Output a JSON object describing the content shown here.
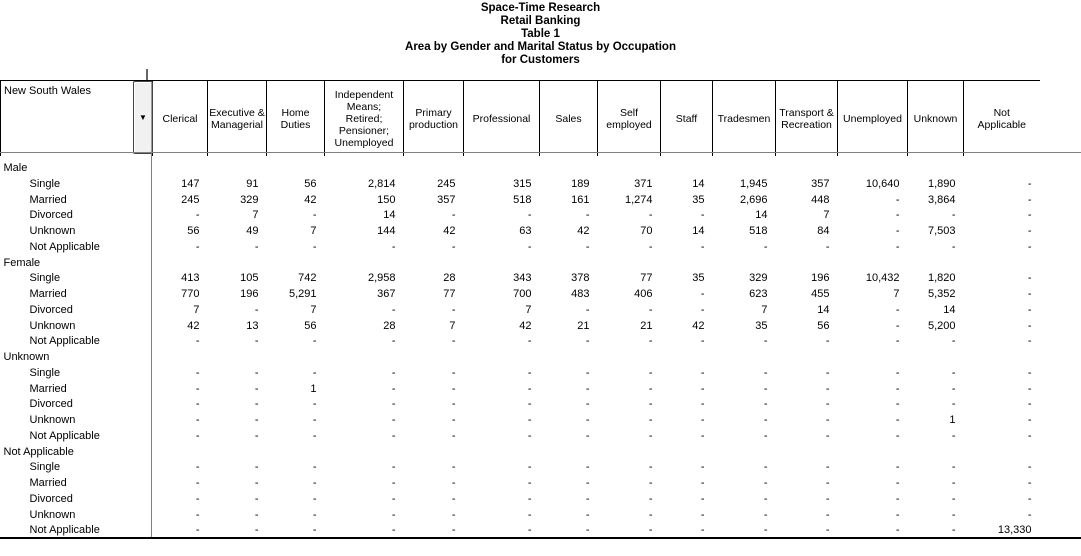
{
  "titles": [
    "Space-Time Research",
    "Retail Banking",
    "Table 1",
    "Area by Gender and Marital Status by Occupation",
    "for Customers"
  ],
  "table": {
    "area_label": "New South Wales",
    "dropdown_icon": "▼",
    "columns": [
      "Clerical",
      "Executive &\nManagerial",
      "Home\nDuties",
      "Independent\nMeans;\nRetired;\nPensioner;\nUnemployed",
      "Primary\nproduction",
      "Professional",
      "Sales",
      "Self\nemployed",
      "Staff",
      "Tradesmen",
      "Transport &\nRecreation",
      "Unemployed",
      "Unknown",
      "Not\nApplicable"
    ],
    "groups": [
      {
        "label": "Male",
        "rows": [
          {
            "label": "Single",
            "values": [
              "147",
              "91",
              "56",
              "2,814",
              "245",
              "315",
              "189",
              "371",
              "14",
              "1,945",
              "357",
              "10,640",
              "1,890",
              "-"
            ]
          },
          {
            "label": "Married",
            "values": [
              "245",
              "329",
              "42",
              "150",
              "357",
              "518",
              "161",
              "1,274",
              "35",
              "2,696",
              "448",
              "-",
              "3,864",
              "-"
            ]
          },
          {
            "label": "Divorced",
            "values": [
              "-",
              "7",
              "-",
              "14",
              "-",
              "-",
              "-",
              "-",
              "-",
              "14",
              "7",
              "-",
              "-",
              "-"
            ]
          },
          {
            "label": "Unknown",
            "values": [
              "56",
              "49",
              "7",
              "144",
              "42",
              "63",
              "42",
              "70",
              "14",
              "518",
              "84",
              "-",
              "7,503",
              "-"
            ]
          },
          {
            "label": "Not Applicable",
            "values": [
              "-",
              "-",
              "-",
              "-",
              "-",
              "-",
              "-",
              "-",
              "-",
              "-",
              "-",
              "-",
              "-",
              "-"
            ]
          }
        ]
      },
      {
        "label": "Female",
        "rows": [
          {
            "label": "Single",
            "values": [
              "413",
              "105",
              "742",
              "2,958",
              "28",
              "343",
              "378",
              "77",
              "35",
              "329",
              "196",
              "10,432",
              "1,820",
              "-"
            ]
          },
          {
            "label": "Married",
            "values": [
              "770",
              "196",
              "5,291",
              "367",
              "77",
              "700",
              "483",
              "406",
              "-",
              "623",
              "455",
              "7",
              "5,352",
              "-"
            ]
          },
          {
            "label": "Divorced",
            "values": [
              "7",
              "-",
              "7",
              "-",
              "-",
              "7",
              "-",
              "-",
              "-",
              "7",
              "14",
              "-",
              "14",
              "-"
            ]
          },
          {
            "label": "Unknown",
            "values": [
              "42",
              "13",
              "56",
              "28",
              "7",
              "42",
              "21",
              "21",
              "42",
              "35",
              "56",
              "-",
              "5,200",
              "-"
            ]
          },
          {
            "label": "Not Applicable",
            "values": [
              "-",
              "-",
              "-",
              "-",
              "-",
              "-",
              "-",
              "-",
              "-",
              "-",
              "-",
              "-",
              "-",
              "-"
            ]
          }
        ]
      },
      {
        "label": "Unknown",
        "rows": [
          {
            "label": "Single",
            "values": [
              "-",
              "-",
              "-",
              "-",
              "-",
              "-",
              "-",
              "-",
              "-",
              "-",
              "-",
              "-",
              "-",
              "-"
            ]
          },
          {
            "label": "Married",
            "values": [
              "-",
              "-",
              "1",
              "-",
              "-",
              "-",
              "-",
              "-",
              "-",
              "-",
              "-",
              "-",
              "-",
              "-"
            ]
          },
          {
            "label": "Divorced",
            "values": [
              "-",
              "-",
              "-",
              "-",
              "-",
              "-",
              "-",
              "-",
              "-",
              "-",
              "-",
              "-",
              "-",
              "-"
            ]
          },
          {
            "label": "Unknown",
            "values": [
              "-",
              "-",
              "-",
              "-",
              "-",
              "-",
              "-",
              "-",
              "-",
              "-",
              "-",
              "-",
              "1",
              "-"
            ]
          },
          {
            "label": "Not Applicable",
            "values": [
              "-",
              "-",
              "-",
              "-",
              "-",
              "-",
              "-",
              "-",
              "-",
              "-",
              "-",
              "-",
              "-",
              "-"
            ]
          }
        ]
      },
      {
        "label": "Not Applicable",
        "rows": [
          {
            "label": "Single",
            "values": [
              "-",
              "-",
              "-",
              "-",
              "-",
              "-",
              "-",
              "-",
              "-",
              "-",
              "-",
              "-",
              "-",
              "-"
            ]
          },
          {
            "label": "Married",
            "values": [
              "-",
              "-",
              "-",
              "-",
              "-",
              "-",
              "-",
              "-",
              "-",
              "-",
              "-",
              "-",
              "-",
              "-"
            ]
          },
          {
            "label": "Divorced",
            "values": [
              "-",
              "-",
              "-",
              "-",
              "-",
              "-",
              "-",
              "-",
              "-",
              "-",
              "-",
              "-",
              "-",
              "-"
            ]
          },
          {
            "label": "Unknown",
            "values": [
              "-",
              "-",
              "-",
              "-",
              "-",
              "-",
              "-",
              "-",
              "-",
              "-",
              "-",
              "-",
              "-",
              "-"
            ]
          },
          {
            "label": "Not Applicable",
            "values": [
              "-",
              "-",
              "-",
              "-",
              "-",
              "-",
              "-",
              "-",
              "-",
              "-",
              "-",
              "-",
              "-",
              "13,330"
            ]
          }
        ]
      }
    ]
  }
}
